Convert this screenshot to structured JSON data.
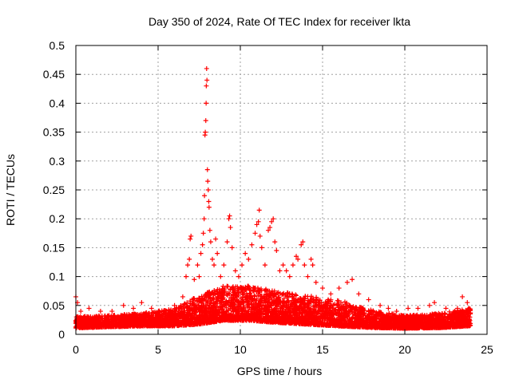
{
  "chart_data": {
    "type": "scatter",
    "title": "Day 350 of 2024, Rate Of TEC Index for receiver lkta",
    "xlabel": "GPS time / hours",
    "ylabel": "ROTI / TECUs",
    "xlim": [
      0,
      25
    ],
    "ylim": [
      0,
      0.5
    ],
    "grid": true,
    "marker": "plus",
    "color": "#ff0000",
    "x_ticks": [
      0,
      5,
      10,
      15,
      20,
      25
    ],
    "x_tick_labels": [
      "0",
      "5",
      "10",
      "15",
      "20",
      "25"
    ],
    "y_ticks": [
      0,
      0.05,
      0.1,
      0.15,
      0.2,
      0.25,
      0.3,
      0.35,
      0.4,
      0.45,
      0.5
    ],
    "y_tick_labels": [
      "0",
      "0.05",
      "0.1",
      "0.15",
      "0.2",
      "0.25",
      "0.3",
      "0.35",
      "0.4",
      "0.45",
      "0.5"
    ],
    "series": [
      {
        "name": "ROTI",
        "baseline_profile": [
          {
            "x": 0.0,
            "typical": 0.018,
            "spread": 0.02
          },
          {
            "x": 2.0,
            "typical": 0.02,
            "spread": 0.02
          },
          {
            "x": 4.0,
            "typical": 0.022,
            "spread": 0.022
          },
          {
            "x": 6.0,
            "typical": 0.025,
            "spread": 0.03
          },
          {
            "x": 7.5,
            "typical": 0.035,
            "spread": 0.05
          },
          {
            "x": 9.0,
            "typical": 0.045,
            "spread": 0.06
          },
          {
            "x": 10.5,
            "typical": 0.045,
            "spread": 0.06
          },
          {
            "x": 12.0,
            "typical": 0.04,
            "spread": 0.055
          },
          {
            "x": 14.0,
            "typical": 0.035,
            "spread": 0.05
          },
          {
            "x": 16.0,
            "typical": 0.03,
            "spread": 0.045
          },
          {
            "x": 18.0,
            "typical": 0.022,
            "spread": 0.03
          },
          {
            "x": 20.0,
            "typical": 0.018,
            "spread": 0.022
          },
          {
            "x": 22.0,
            "typical": 0.02,
            "spread": 0.025
          },
          {
            "x": 24.0,
            "typical": 0.025,
            "spread": 0.03
          }
        ],
        "points": [
          [
            0.0,
            0.065
          ],
          [
            0.1,
            0.055
          ],
          [
            0.3,
            0.04
          ],
          [
            0.8,
            0.045
          ],
          [
            1.5,
            0.04
          ],
          [
            2.2,
            0.04
          ],
          [
            2.9,
            0.05
          ],
          [
            3.5,
            0.045
          ],
          [
            4.0,
            0.055
          ],
          [
            4.6,
            0.045
          ],
          [
            5.5,
            0.04
          ],
          [
            6.0,
            0.05
          ],
          [
            6.5,
            0.065
          ],
          [
            6.7,
            0.1
          ],
          [
            6.8,
            0.12
          ],
          [
            6.9,
            0.13
          ],
          [
            6.95,
            0.165
          ],
          [
            7.0,
            0.17
          ],
          [
            7.2,
            0.095
          ],
          [
            7.4,
            0.12
          ],
          [
            7.5,
            0.1
          ],
          [
            7.6,
            0.14
          ],
          [
            7.7,
            0.155
          ],
          [
            7.75,
            0.175
          ],
          [
            7.8,
            0.2
          ],
          [
            7.82,
            0.24
          ],
          [
            7.85,
            0.345
          ],
          [
            7.87,
            0.35
          ],
          [
            7.9,
            0.37
          ],
          [
            7.92,
            0.4
          ],
          [
            7.93,
            0.43
          ],
          [
            7.95,
            0.46
          ],
          [
            7.97,
            0.44
          ],
          [
            8.0,
            0.285
          ],
          [
            8.02,
            0.265
          ],
          [
            8.05,
            0.25
          ],
          [
            8.08,
            0.23
          ],
          [
            8.1,
            0.22
          ],
          [
            8.15,
            0.18
          ],
          [
            8.2,
            0.16
          ],
          [
            8.3,
            0.13
          ],
          [
            8.4,
            0.12
          ],
          [
            8.5,
            0.165
          ],
          [
            8.6,
            0.14
          ],
          [
            8.8,
            0.1
          ],
          [
            9.0,
            0.12
          ],
          [
            9.2,
            0.16
          ],
          [
            9.3,
            0.2
          ],
          [
            9.35,
            0.205
          ],
          [
            9.4,
            0.185
          ],
          [
            9.5,
            0.15
          ],
          [
            9.7,
            0.11
          ],
          [
            9.9,
            0.1
          ],
          [
            10.1,
            0.12
          ],
          [
            10.3,
            0.14
          ],
          [
            10.5,
            0.13
          ],
          [
            10.7,
            0.155
          ],
          [
            10.9,
            0.175
          ],
          [
            11.0,
            0.19
          ],
          [
            11.1,
            0.195
          ],
          [
            11.15,
            0.215
          ],
          [
            11.2,
            0.17
          ],
          [
            11.3,
            0.15
          ],
          [
            11.5,
            0.12
          ],
          [
            11.7,
            0.18
          ],
          [
            11.8,
            0.185
          ],
          [
            11.9,
            0.195
          ],
          [
            12.0,
            0.2
          ],
          [
            12.1,
            0.16
          ],
          [
            12.2,
            0.145
          ],
          [
            12.4,
            0.11
          ],
          [
            12.6,
            0.12
          ],
          [
            12.8,
            0.11
          ],
          [
            13.0,
            0.1
          ],
          [
            13.2,
            0.12
          ],
          [
            13.4,
            0.135
          ],
          [
            13.5,
            0.13
          ],
          [
            13.7,
            0.155
          ],
          [
            13.8,
            0.16
          ],
          [
            13.9,
            0.12
          ],
          [
            14.1,
            0.1
          ],
          [
            14.3,
            0.13
          ],
          [
            14.4,
            0.12
          ],
          [
            14.6,
            0.09
          ],
          [
            15.0,
            0.08
          ],
          [
            15.5,
            0.07
          ],
          [
            16.0,
            0.08
          ],
          [
            16.5,
            0.09
          ],
          [
            16.8,
            0.095
          ],
          [
            17.2,
            0.07
          ],
          [
            17.8,
            0.06
          ],
          [
            18.5,
            0.05
          ],
          [
            19.0,
            0.045
          ],
          [
            19.5,
            0.04
          ],
          [
            20.2,
            0.045
          ],
          [
            20.8,
            0.045
          ],
          [
            21.5,
            0.05
          ],
          [
            21.8,
            0.055
          ],
          [
            22.5,
            0.045
          ],
          [
            23.2,
            0.045
          ],
          [
            23.5,
            0.065
          ],
          [
            23.8,
            0.055
          ],
          [
            23.9,
            0.045
          ]
        ]
      }
    ]
  }
}
